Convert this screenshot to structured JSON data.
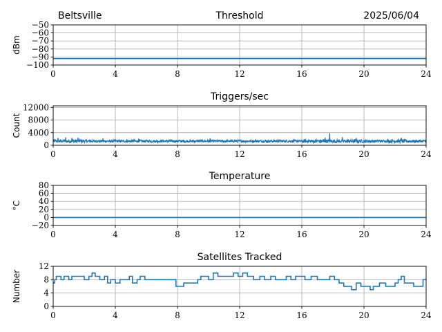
{
  "header": {
    "location": "Beltsville",
    "date": "2025/06/04"
  },
  "colors": {
    "series": "#1f77b4",
    "grid": "#b0b0b0"
  },
  "chart_data": [
    {
      "type": "line",
      "title": "Threshold",
      "ylabel": "dBm",
      "xlim": [
        0,
        24
      ],
      "ylim": [
        -100,
        -50
      ],
      "xticks": [
        0,
        4,
        8,
        12,
        16,
        20,
        24
      ],
      "yticks": [
        -100,
        -90,
        -80,
        -70,
        -60,
        -50
      ],
      "grid": true,
      "series": [
        {
          "style": "step",
          "x": [
            0,
            24
          ],
          "y": [
            -92,
            -92
          ]
        }
      ]
    },
    {
      "type": "line",
      "title": "Triggers/sec",
      "ylabel": "Count",
      "xlim": [
        0,
        24
      ],
      "ylim": [
        0,
        12500
      ],
      "xticks": [
        0,
        4,
        8,
        12,
        16,
        20,
        24
      ],
      "yticks": [
        0,
        4000,
        8000,
        12000
      ],
      "grid": true,
      "series": [
        {
          "style": "noisy",
          "base": 1300,
          "spread": 800,
          "x_range": [
            0,
            24
          ],
          "spikes": [
            [
              0.3,
              2300
            ],
            [
              0.8,
              2500
            ],
            [
              1.2,
              2300
            ],
            [
              1.6,
              2400
            ],
            [
              3.2,
              2200
            ],
            [
              5.5,
              2100
            ],
            [
              10.1,
              2200
            ],
            [
              17.5,
              2400
            ],
            [
              17.8,
              3800
            ],
            [
              18.6,
              2600
            ],
            [
              19.5,
              2300
            ],
            [
              22.4,
              2300
            ]
          ]
        }
      ]
    },
    {
      "type": "line",
      "title": "Temperature",
      "ylabel": "°C",
      "xlim": [
        0,
        24
      ],
      "ylim": [
        -20,
        80
      ],
      "xticks": [
        0,
        4,
        8,
        12,
        16,
        20,
        24
      ],
      "yticks": [
        -20,
        0,
        20,
        40,
        60,
        80
      ],
      "grid": true,
      "series": [
        {
          "style": "step",
          "x": [
            0,
            24
          ],
          "y": [
            0,
            0
          ]
        }
      ]
    },
    {
      "type": "line",
      "title": "Satellites Tracked",
      "ylabel": "Number",
      "xlim": [
        0,
        24
      ],
      "ylim": [
        0,
        12
      ],
      "xticks": [
        0,
        4,
        8,
        12,
        16,
        20,
        24
      ],
      "yticks": [
        0,
        4,
        8,
        12
      ],
      "grid": true,
      "series": [
        {
          "style": "step",
          "x": [
            0,
            0.1,
            0.2,
            0.5,
            0.7,
            1.0,
            1.2,
            1.5,
            2.0,
            2.3,
            2.5,
            2.7,
            3.0,
            3.3,
            3.5,
            3.7,
            4.0,
            4.3,
            4.6,
            4.9,
            5.1,
            5.4,
            5.6,
            5.9,
            6.2,
            6.6,
            7.0,
            7.6,
            7.9,
            8.4,
            8.8,
            9.3,
            9.5,
            10.0,
            10.3,
            10.6,
            10.9,
            11.3,
            11.6,
            11.9,
            12.2,
            12.5,
            12.9,
            13.3,
            13.6,
            14.0,
            14.3,
            14.6,
            15.0,
            15.3,
            15.6,
            15.9,
            16.2,
            16.6,
            17.0,
            17.4,
            17.8,
            18.1,
            18.4,
            18.7,
            19.0,
            19.2,
            19.5,
            19.8,
            20.2,
            20.4,
            20.6,
            21.0,
            21.4,
            21.8,
            22.0,
            22.2,
            22.4,
            22.6,
            22.9,
            23.2,
            23.6,
            23.8
          ],
          "y": [
            7,
            8,
            9,
            8,
            9,
            8,
            9,
            9,
            8,
            9,
            10,
            9,
            8,
            9,
            7,
            8,
            7,
            8,
            8,
            9,
            7,
            8,
            9,
            8,
            8,
            8,
            8,
            8,
            6,
            7,
            7,
            8,
            9,
            8,
            10,
            9,
            9,
            9,
            10,
            9,
            10,
            9,
            8,
            9,
            8,
            9,
            8,
            8,
            9,
            8,
            9,
            9,
            8,
            9,
            8,
            8,
            9,
            8,
            7,
            6,
            6,
            5,
            7,
            6,
            6,
            5,
            6,
            7,
            6,
            6,
            7,
            8,
            9,
            7,
            7,
            6,
            6,
            8
          ]
        }
      ]
    }
  ]
}
